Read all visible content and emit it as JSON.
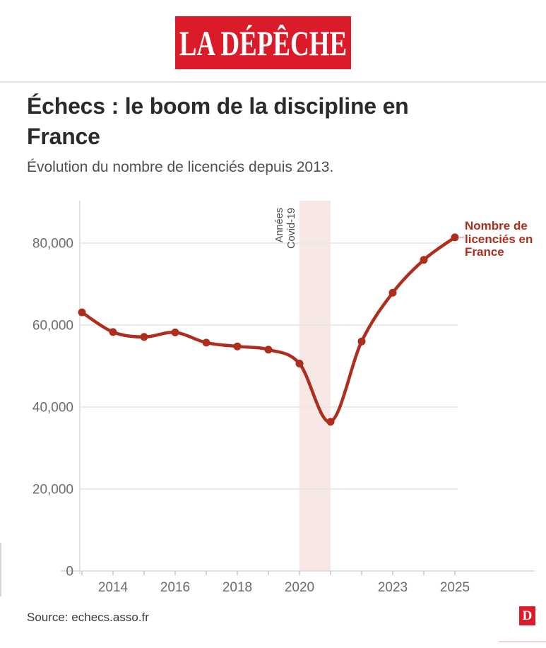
{
  "header": {
    "logo_text": "LA DÉPÊCHE",
    "logo_color": "#DB1B29"
  },
  "article": {
    "title": "Échecs : le boom de la discipline en France",
    "subtitle": "Évolution du nombre de licenciés depuis 2013."
  },
  "chart_data": {
    "type": "line",
    "title": "Échecs : le boom de la discipline en France",
    "subtitle": "Évolution du nombre de licenciés depuis 2013.",
    "x": [
      2013,
      2014,
      2015,
      2016,
      2017,
      2018,
      2019,
      2020,
      2021,
      2022,
      2023,
      2024,
      2025
    ],
    "series": [
      {
        "name": "Nombre de licenciés en France",
        "values": [
          63100,
          58300,
          57100,
          58200,
          55700,
          54800,
          54000,
          50600,
          36400,
          56000,
          67900,
          75900,
          81400
        ]
      }
    ],
    "xlabel": "",
    "ylabel": "",
    "ylim": [
      0,
      90400
    ],
    "yticks": [
      0,
      20000,
      40000,
      60000,
      80000
    ],
    "ytick_labels": [
      "0",
      "20,000",
      "40,000",
      "60,000",
      "80,000"
    ],
    "xticks_labeled": [
      2014,
      2016,
      2018,
      2020,
      2023,
      2025
    ],
    "grid": "horizontal",
    "legend_position": "end-of-line-label",
    "line_color": "#AF2D1D",
    "point_markers": true,
    "covid_band": {
      "x_from": 2020,
      "x_to": 2021,
      "fill": "#F8E8E5",
      "label_line1": "Années",
      "label_line2": "Covid-19"
    },
    "end_label": {
      "line1": "Nombre de",
      "line2": "licenciés en",
      "line3": "France"
    }
  },
  "footer": {
    "source": "Source: echecs.asso.fr",
    "watermark_letter": "D"
  }
}
